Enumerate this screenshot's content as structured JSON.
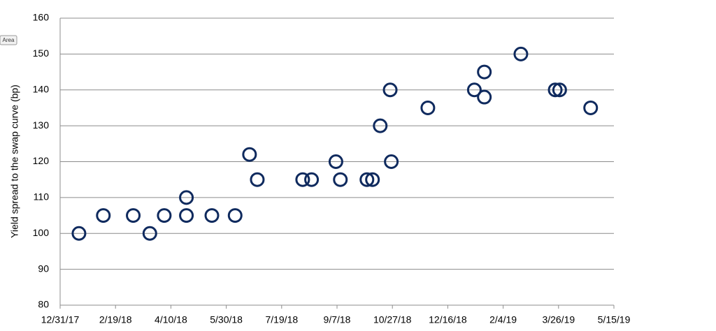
{
  "area_label": "Area",
  "chart_data": {
    "type": "scatter",
    "y_label": "Yield spread to the swap curve (bp)",
    "x": [
      "1/17/18",
      "2/8/18",
      "3/7/18",
      "3/22/18",
      "4/4/18",
      "4/24/18",
      "4/24/18",
      "5/17/18",
      "6/7/18",
      "6/20/18",
      "6/27/18",
      "8/7/18",
      "8/15/18",
      "9/6/18",
      "9/10/18",
      "10/4/18",
      "10/9/18",
      "10/16/18",
      "10/25/18",
      "10/26/18",
      "11/28/18",
      "1/9/19",
      "1/18/19",
      "1/18/19",
      "2/20/19",
      "3/23/19",
      "3/27/19",
      "4/24/19"
    ],
    "values": [
      100,
      105,
      105,
      100,
      105,
      110,
      105,
      105,
      105,
      122,
      115,
      115,
      115,
      120,
      115,
      115,
      115,
      130,
      140,
      120,
      135,
      140,
      145,
      138,
      150,
      140,
      140,
      135
    ],
    "color": "#0f2a5e",
    "xlim": [
      "12/31/17",
      "5/15/19"
    ],
    "xticks": [
      "12/31/17",
      "2/19/18",
      "4/10/18",
      "5/30/18",
      "7/19/18",
      "9/7/18",
      "10/27/18",
      "12/16/18",
      "2/4/19",
      "3/26/19",
      "5/15/19"
    ],
    "ylim": [
      80,
      160
    ],
    "yticks": [
      80,
      90,
      100,
      110,
      120,
      130,
      140,
      150,
      160
    ],
    "grid": true
  }
}
